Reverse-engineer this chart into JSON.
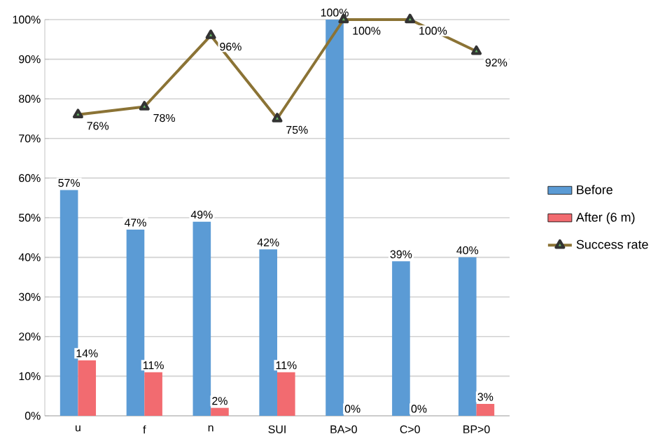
{
  "chart_data": {
    "type": "bar",
    "categories": [
      "u",
      "f",
      "n",
      "SUI",
      "BA>0",
      "C>0",
      "BP>0"
    ],
    "series": [
      {
        "name": "Before",
        "color": "#5b9bd5",
        "values": [
          57,
          47,
          49,
          42,
          100,
          39,
          40
        ],
        "value_labels": [
          "57%",
          "47%",
          "49%",
          "42%",
          "100%",
          "39%",
          "40%"
        ]
      },
      {
        "name": "After (6 m)",
        "color": "#f26b70",
        "values": [
          14,
          11,
          2,
          11,
          0,
          0,
          3
        ],
        "value_labels": [
          "14%",
          "11%",
          "2%",
          "11%",
          "0%",
          "0%",
          "3%"
        ]
      },
      {
        "name": "Success rate",
        "type": "line",
        "color": "#8b7335",
        "marker": "triangle",
        "values": [
          76,
          78,
          96,
          75,
          100,
          100,
          92
        ],
        "value_labels": [
          "76%",
          "78%",
          "96%",
          "75%",
          "100%",
          "100%",
          "92%"
        ]
      }
    ],
    "ylim": [
      0,
      100
    ],
    "yticks": [
      {
        "value": 0,
        "label": "0%"
      },
      {
        "value": 10,
        "label": "10%"
      },
      {
        "value": 20,
        "label": "20%"
      },
      {
        "value": 30,
        "label": "30%"
      },
      {
        "value": 40,
        "label": "40%"
      },
      {
        "value": 50,
        "label": "50%"
      },
      {
        "value": 60,
        "label": "60%"
      },
      {
        "value": 70,
        "label": "70%"
      },
      {
        "value": 80,
        "label": "80%"
      },
      {
        "value": 90,
        "label": "90%"
      },
      {
        "value": 100,
        "label": "100%"
      }
    ],
    "grid": "y",
    "legend": "right"
  }
}
